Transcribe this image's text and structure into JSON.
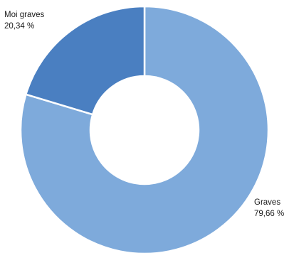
{
  "chart_data": {
    "type": "pie",
    "variant": "donut",
    "title": "",
    "slices": [
      {
        "label": "Graves",
        "value": 79.66,
        "value_text": "79,66 %",
        "color": "#7eaadb"
      },
      {
        "label": "Moi graves",
        "value": 20.34,
        "value_text": "20,34 %",
        "color": "#4a7fc1"
      }
    ],
    "legend": "none",
    "slice_border_color": "#ffffff",
    "background": "#ffffff"
  }
}
